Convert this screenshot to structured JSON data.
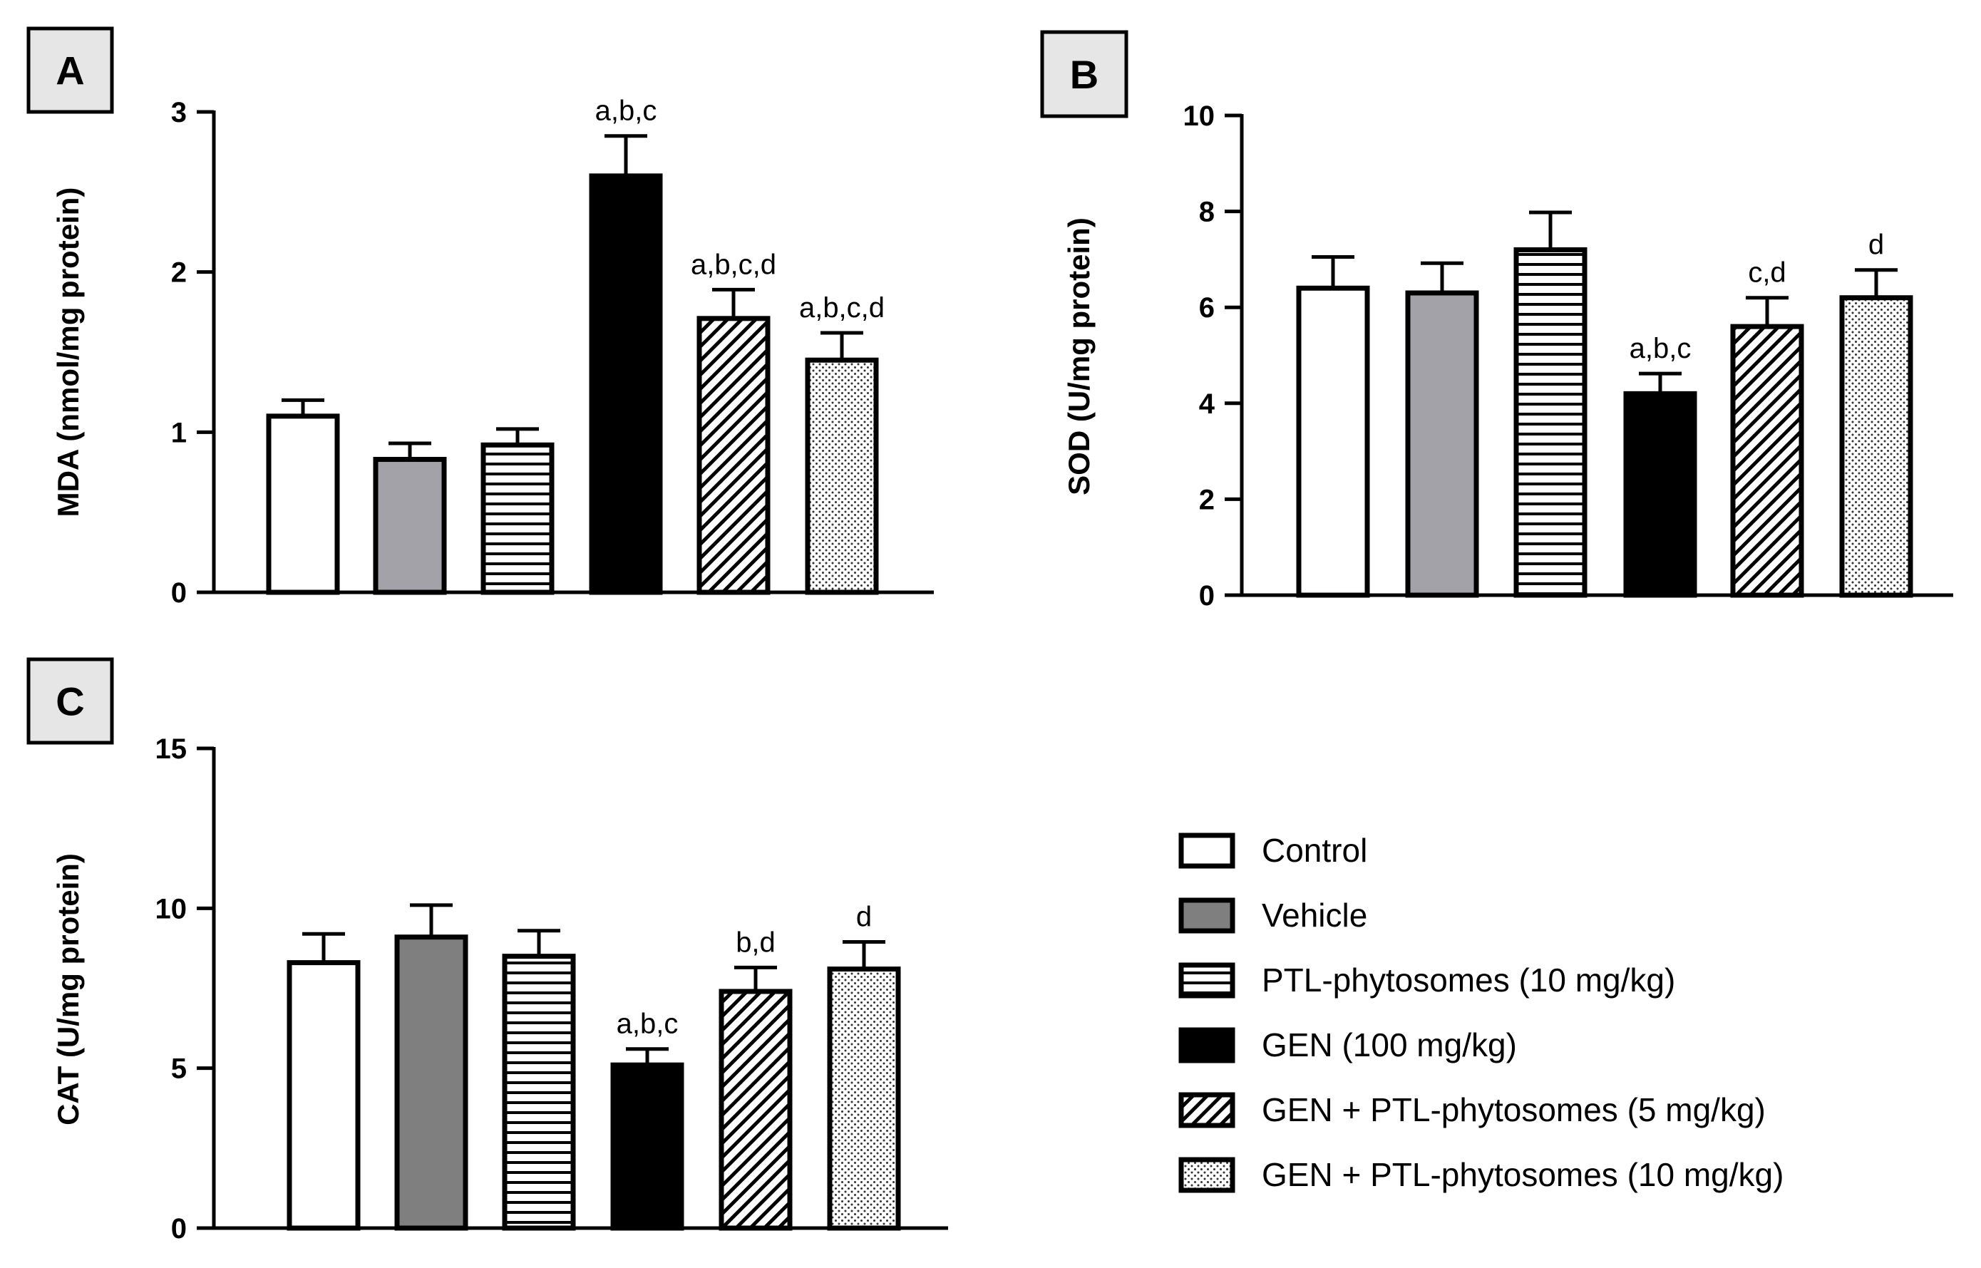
{
  "legend": [
    {
      "id": "control",
      "label": "Control"
    },
    {
      "id": "vehicle",
      "label": "Vehicle"
    },
    {
      "id": "ptl10",
      "label": "PTL-phytosomes (10 mg/kg)"
    },
    {
      "id": "gen",
      "label": "GEN (100 mg/kg)"
    },
    {
      "id": "gen_ptl5",
      "label": "GEN + PTL-phytosomes (5 mg/kg)"
    },
    {
      "id": "gen_ptl10",
      "label": "GEN + PTL-phytosomes (10 mg/kg)"
    }
  ],
  "chart_data": [
    {
      "panel": "A",
      "type": "bar",
      "ylabel": "MDA (nmol/mg protein)",
      "ylim": [
        0,
        3
      ],
      "yticks": [
        0,
        1,
        2,
        3
      ],
      "categories": [
        "Control",
        "Vehicle",
        "PTL-phytosomes (10 mg/kg)",
        "GEN (100 mg/kg)",
        "GEN + PTL-phytosomes (5 mg/kg)",
        "GEN + PTL-phytosomes (10 mg/kg)"
      ],
      "values": [
        1.1,
        0.83,
        0.92,
        2.6,
        1.71,
        1.45
      ],
      "errors": [
        0.1,
        0.1,
        0.1,
        0.25,
        0.18,
        0.17
      ],
      "annotations": [
        "",
        "",
        "",
        "a,b,c",
        "a,b,c,d",
        "a,b,c,d"
      ]
    },
    {
      "panel": "B",
      "type": "bar",
      "ylabel": "SOD (U/mg protein)",
      "ylim": [
        0,
        10
      ],
      "yticks": [
        0,
        2,
        4,
        6,
        8,
        10
      ],
      "categories": [
        "Control",
        "Vehicle",
        "PTL-phytosomes (10 mg/kg)",
        "GEN (100 mg/kg)",
        "GEN + PTL-phytosomes (5 mg/kg)",
        "GEN + PTL-phytosomes (10 mg/kg)"
      ],
      "values": [
        6.4,
        6.3,
        7.2,
        4.2,
        5.6,
        6.2
      ],
      "errors": [
        0.65,
        0.62,
        0.78,
        0.42,
        0.6,
        0.58
      ],
      "annotations": [
        "",
        "",
        "",
        "a,b,c",
        "c,d",
        "d"
      ]
    },
    {
      "panel": "C",
      "type": "bar",
      "ylabel": "CAT (U/mg protein)",
      "ylim": [
        0,
        15
      ],
      "yticks": [
        0,
        5,
        10,
        15
      ],
      "categories": [
        "Control",
        "Vehicle",
        "PTL-phytosomes (10 mg/kg)",
        "GEN (100 mg/kg)",
        "GEN + PTL-phytosomes (5 mg/kg)",
        "GEN + PTL-phytosomes (10 mg/kg)"
      ],
      "values": [
        8.3,
        9.1,
        8.5,
        5.1,
        7.4,
        8.1
      ],
      "errors": [
        0.9,
        1.0,
        0.8,
        0.5,
        0.75,
        0.85
      ],
      "annotations": [
        "",
        "",
        "",
        "a,b,c",
        "b,d",
        "d"
      ]
    }
  ]
}
